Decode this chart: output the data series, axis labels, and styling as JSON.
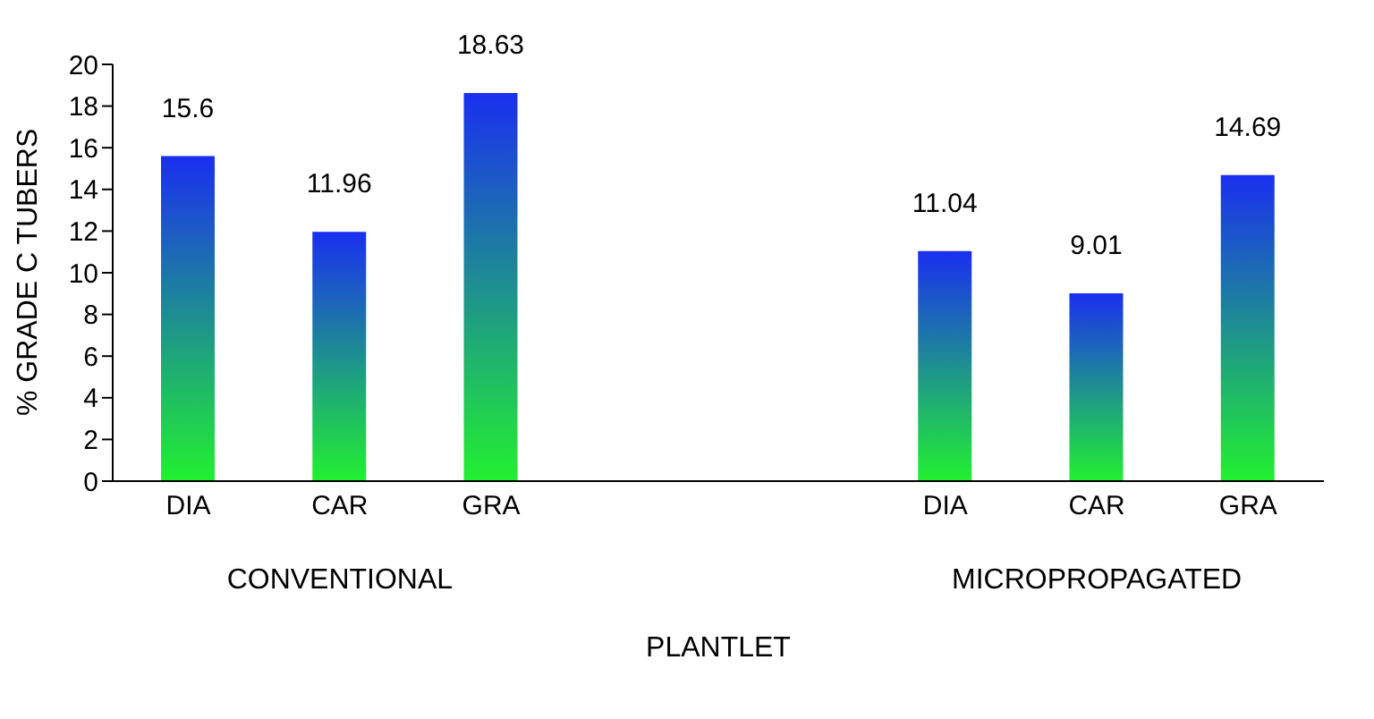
{
  "chart_data": {
    "type": "bar",
    "ylabel": "% GRADE C TUBERS",
    "xlabel": "PLANTLET",
    "categories": [
      "DIA",
      "CAR",
      "GRA",
      null,
      null,
      "DIA",
      "CAR",
      "GRA"
    ],
    "values": [
      15.6,
      11.96,
      18.63,
      null,
      null,
      11.04,
      9.01,
      14.69
    ],
    "color": "#1a2ff0",
    "ylim": [
      0,
      20
    ],
    "yticks": [
      0,
      2,
      4,
      6,
      8,
      10,
      12,
      14,
      16,
      18,
      20
    ],
    "data_labels": true,
    "grid": false,
    "legend": false,
    "annotations": [
      "CONVENTIONAL",
      "MICROPROPAGATED"
    ]
  }
}
